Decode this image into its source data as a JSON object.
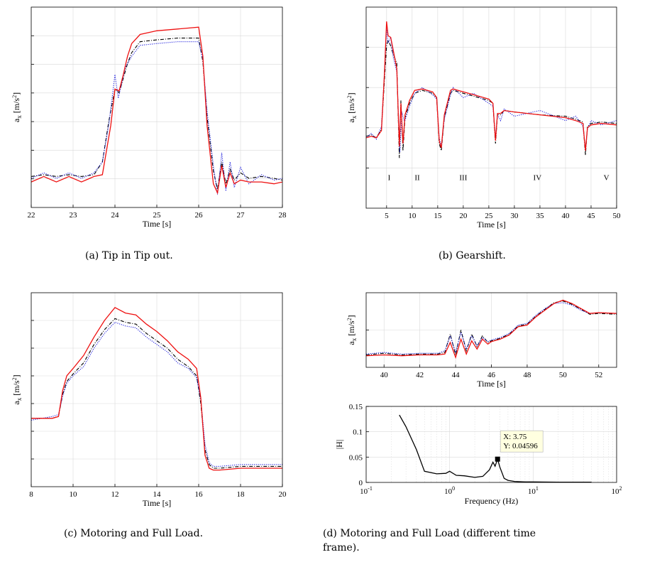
{
  "captions": {
    "a": "(a)  Tip in Tip out.",
    "b": "(b)  Gearshift.",
    "c": "(c)  Motoring and Full Load.",
    "d1": "(d)  Motoring  and  Full  Load  (different  time",
    "d2": "frame)."
  },
  "colors": {
    "series1": "#000000",
    "series2": "#2020dd",
    "series3": "#ee1111",
    "datatip_bg": "#ffffe0"
  },
  "chart_data": [
    {
      "id": "a",
      "type": "line",
      "xlabel": "Time [s]",
      "ylabel": "a_x [m/s^2]",
      "xlim": [
        22,
        28
      ],
      "xticks": [
        22,
        23,
        24,
        25,
        26,
        27,
        28
      ],
      "grid": true,
      "ytick_labels_visible": false,
      "series": [
        {
          "style": "dashdot",
          "color": "black",
          "x": [
            22,
            22.3,
            22.6,
            22.9,
            23.2,
            23.5,
            23.7,
            23.85,
            24.0,
            24.1,
            24.2,
            24.3,
            24.4,
            24.6,
            25.0,
            25.5,
            26.0,
            26.1,
            26.2,
            26.35,
            26.45,
            26.55,
            26.65,
            26.75,
            26.85,
            27.0,
            27.2,
            27.5,
            27.8,
            28
          ],
          "y": [
            0.12,
            0.13,
            0.12,
            0.13,
            0.12,
            0.13,
            0.2,
            0.42,
            0.6,
            0.58,
            0.66,
            0.74,
            0.8,
            0.86,
            0.87,
            0.88,
            0.88,
            0.75,
            0.45,
            0.15,
            0.05,
            0.2,
            0.08,
            0.16,
            0.1,
            0.14,
            0.11,
            0.12,
            0.11,
            0.1
          ]
        },
        {
          "style": "dotted",
          "color": "blue",
          "x": [
            22,
            22.3,
            22.6,
            22.9,
            23.2,
            23.5,
            23.7,
            23.85,
            24.0,
            24.08,
            24.15,
            24.25,
            24.4,
            24.6,
            25.0,
            25.5,
            26.0,
            26.1,
            26.2,
            26.35,
            26.45,
            26.55,
            26.65,
            26.75,
            26.85,
            27.0,
            27.2,
            27.5,
            27.8,
            28
          ],
          "y": [
            0.11,
            0.14,
            0.11,
            0.14,
            0.11,
            0.14,
            0.2,
            0.4,
            0.68,
            0.55,
            0.62,
            0.72,
            0.78,
            0.84,
            0.85,
            0.86,
            0.86,
            0.76,
            0.48,
            0.18,
            0.02,
            0.25,
            0.04,
            0.2,
            0.06,
            0.17,
            0.08,
            0.13,
            0.1,
            0.11
          ]
        },
        {
          "style": "solid",
          "color": "red",
          "x": [
            22,
            22.3,
            22.6,
            22.9,
            23.2,
            23.5,
            23.7,
            23.9,
            24.0,
            24.1,
            24.2,
            24.3,
            24.4,
            24.6,
            25.0,
            25.5,
            26.0,
            26.1,
            26.2,
            26.35,
            26.45,
            26.55,
            26.65,
            26.75,
            26.85,
            27.0,
            27.2,
            27.5,
            27.8,
            28
          ],
          "y": [
            0.09,
            0.12,
            0.09,
            0.12,
            0.09,
            0.12,
            0.13,
            0.4,
            0.6,
            0.59,
            0.68,
            0.78,
            0.85,
            0.9,
            0.92,
            0.93,
            0.94,
            0.78,
            0.4,
            0.08,
            0.03,
            0.18,
            0.06,
            0.14,
            0.08,
            0.1,
            0.09,
            0.09,
            0.08,
            0.09
          ]
        }
      ]
    },
    {
      "id": "b",
      "type": "line",
      "xlabel": "Time [s]",
      "ylabel": "a_x [m/s^2]",
      "xlim": [
        1,
        50
      ],
      "xticks": [
        5,
        10,
        15,
        20,
        25,
        30,
        35,
        40,
        45,
        50
      ],
      "grid": true,
      "ytick_labels_visible": false,
      "annotations": [
        {
          "text": "I",
          "x": 5.5
        },
        {
          "text": "II",
          "x": 11
        },
        {
          "text": "III",
          "x": 20
        },
        {
          "text": "IV",
          "x": 34.5
        },
        {
          "text": "V",
          "x": 48
        }
      ],
      "series": [
        {
          "style": "dashdot",
          "color": "black",
          "x": [
            1,
            2,
            3,
            4,
            4.6,
            5.0,
            5.3,
            5.8,
            6.3,
            7.0,
            7.5,
            7.8,
            8.2,
            8.6,
            9.5,
            10.5,
            12,
            14,
            14.8,
            15.3,
            15.7,
            16.3,
            17.5,
            18,
            20,
            22,
            25,
            25.8,
            26.3,
            26.7,
            27.3,
            28,
            30,
            35,
            40,
            42,
            43.4,
            43.9,
            44.3,
            45,
            47,
            50
          ],
          "y": [
            0.15,
            0.16,
            0.14,
            0.2,
            0.55,
            0.78,
            0.82,
            0.78,
            0.72,
            0.66,
            0.0,
            0.4,
            0.05,
            0.28,
            0.38,
            0.45,
            0.47,
            0.45,
            0.42,
            0.1,
            0.05,
            0.28,
            0.45,
            0.47,
            0.45,
            0.43,
            0.4,
            0.38,
            0.1,
            0.3,
            0.3,
            0.33,
            0.32,
            0.3,
            0.29,
            0.27,
            0.25,
            0.02,
            0.22,
            0.24,
            0.25,
            0.24
          ]
        },
        {
          "style": "dotted",
          "color": "blue",
          "x": [
            1,
            2,
            3,
            4,
            4.6,
            5.0,
            5.3,
            5.8,
            6.3,
            7.0,
            7.6,
            8.0,
            8.5,
            9.5,
            10.5,
            12,
            14,
            14.8,
            15.3,
            15.7,
            16.3,
            17.5,
            18,
            20,
            22,
            25,
            25.8,
            26.3,
            26.7,
            27.3,
            28,
            30,
            35,
            40,
            42,
            43.4,
            43.9,
            44.3,
            45,
            47,
            50
          ],
          "y": [
            0.14,
            0.17,
            0.13,
            0.22,
            0.6,
            0.9,
            0.8,
            0.84,
            0.7,
            0.6,
            0.04,
            0.32,
            0.25,
            0.36,
            0.45,
            0.49,
            0.44,
            0.41,
            0.14,
            0.08,
            0.27,
            0.44,
            0.49,
            0.42,
            0.45,
            0.38,
            0.36,
            0.14,
            0.3,
            0.26,
            0.34,
            0.29,
            0.33,
            0.26,
            0.29,
            0.22,
            0.06,
            0.2,
            0.26,
            0.23,
            0.26
          ]
        },
        {
          "style": "solid",
          "color": "red",
          "x": [
            1,
            2,
            3,
            4,
            4.6,
            5.0,
            5.3,
            5.8,
            6.3,
            7.0,
            7.5,
            7.8,
            8.2,
            8.6,
            9.5,
            10.5,
            12,
            14,
            14.8,
            15.3,
            15.7,
            16.3,
            17.5,
            18,
            20,
            22,
            25,
            25.8,
            26.3,
            26.7,
            27.3,
            28,
            30,
            35,
            40,
            42,
            43.4,
            43.9,
            44.3,
            45,
            47,
            50
          ],
          "y": [
            0.14,
            0.15,
            0.14,
            0.19,
            0.6,
            0.95,
            0.85,
            0.84,
            0.75,
            0.62,
            0.08,
            0.38,
            0.1,
            0.3,
            0.4,
            0.47,
            0.48,
            0.46,
            0.42,
            0.12,
            0.07,
            0.3,
            0.47,
            0.48,
            0.46,
            0.44,
            0.41,
            0.38,
            0.12,
            0.31,
            0.31,
            0.33,
            0.32,
            0.3,
            0.28,
            0.26,
            0.24,
            0.05,
            0.21,
            0.23,
            0.24,
            0.23
          ]
        }
      ]
    },
    {
      "id": "c",
      "type": "line",
      "xlabel": "Time [s]",
      "ylabel": "a_x [m/s^2]",
      "xlim": [
        8,
        20
      ],
      "xticks": [
        8,
        10,
        12,
        14,
        16,
        18,
        20
      ],
      "grid": true,
      "ytick_labels_visible": false,
      "series": [
        {
          "style": "dashdot",
          "color": "black",
          "x": [
            8,
            9,
            9.3,
            9.5,
            9.7,
            10,
            10.5,
            11,
            11.5,
            12,
            12.5,
            13,
            13.5,
            14,
            14.5,
            15,
            15.5,
            15.9,
            16.1,
            16.3,
            16.5,
            16.7,
            17,
            18,
            19,
            20
          ],
          "y": [
            0.32,
            0.32,
            0.33,
            0.45,
            0.52,
            0.56,
            0.62,
            0.72,
            0.8,
            0.86,
            0.84,
            0.83,
            0.78,
            0.74,
            0.7,
            0.64,
            0.6,
            0.55,
            0.4,
            0.15,
            0.07,
            0.05,
            0.05,
            0.06,
            0.06,
            0.06
          ]
        },
        {
          "style": "dotted",
          "color": "blue",
          "x": [
            8,
            9,
            9.3,
            9.5,
            9.7,
            10,
            10.5,
            11,
            11.5,
            12,
            12.5,
            13,
            13.5,
            14,
            14.5,
            15,
            15.5,
            15.9,
            16.1,
            16.3,
            16.5,
            16.7,
            17,
            18,
            19,
            20
          ],
          "y": [
            0.31,
            0.33,
            0.34,
            0.44,
            0.51,
            0.55,
            0.6,
            0.7,
            0.78,
            0.84,
            0.82,
            0.81,
            0.76,
            0.72,
            0.68,
            0.62,
            0.59,
            0.54,
            0.42,
            0.18,
            0.08,
            0.06,
            0.06,
            0.07,
            0.07,
            0.07
          ]
        },
        {
          "style": "solid",
          "color": "red",
          "x": [
            8,
            9,
            9.3,
            9.5,
            9.7,
            10,
            10.5,
            11,
            11.5,
            12,
            12.5,
            13,
            13.5,
            14,
            14.5,
            15,
            15.5,
            15.9,
            16.1,
            16.3,
            16.5,
            16.7,
            17,
            18,
            19,
            20
          ],
          "y": [
            0.32,
            0.32,
            0.33,
            0.47,
            0.55,
            0.59,
            0.66,
            0.76,
            0.85,
            0.92,
            0.89,
            0.88,
            0.83,
            0.79,
            0.74,
            0.68,
            0.64,
            0.59,
            0.43,
            0.12,
            0.05,
            0.04,
            0.04,
            0.05,
            0.05,
            0.05
          ]
        }
      ]
    },
    {
      "id": "d-time",
      "type": "line",
      "xlabel": "Time [s]",
      "ylabel": "a_x [m/s^2]",
      "xlim": [
        39,
        53
      ],
      "xticks": [
        40,
        42,
        44,
        46,
        48,
        50,
        52
      ],
      "grid": true,
      "ytick_labels_visible": false,
      "series": [
        {
          "style": "dashdot",
          "color": "black",
          "x": [
            39,
            40,
            41,
            42,
            43,
            43.4,
            43.7,
            44,
            44.3,
            44.6,
            44.9,
            45.2,
            45.5,
            45.8,
            46,
            46.5,
            47,
            47.5,
            48,
            48.5,
            49,
            49.5,
            50,
            50.5,
            51,
            51.5,
            52,
            53
          ],
          "y": [
            0.25,
            0.27,
            0.25,
            0.26,
            0.26,
            0.28,
            0.5,
            0.25,
            0.55,
            0.3,
            0.5,
            0.35,
            0.48,
            0.4,
            0.42,
            0.45,
            0.5,
            0.6,
            0.62,
            0.72,
            0.8,
            0.88,
            0.9,
            0.86,
            0.8,
            0.74,
            0.75,
            0.74
          ]
        },
        {
          "style": "dotted",
          "color": "blue",
          "x": [
            39,
            40,
            41,
            42,
            43,
            43.4,
            43.7,
            44,
            44.3,
            44.6,
            44.9,
            45.2,
            45.5,
            45.8,
            46,
            46.5,
            47,
            47.5,
            48,
            48.5,
            49,
            49.5,
            50,
            50.5,
            51,
            51.5,
            52,
            53
          ],
          "y": [
            0.26,
            0.28,
            0.26,
            0.27,
            0.27,
            0.3,
            0.48,
            0.28,
            0.52,
            0.32,
            0.48,
            0.36,
            0.46,
            0.41,
            0.43,
            0.46,
            0.51,
            0.61,
            0.63,
            0.73,
            0.81,
            0.87,
            0.88,
            0.85,
            0.79,
            0.75,
            0.76,
            0.75
          ]
        },
        {
          "style": "solid",
          "color": "red",
          "x": [
            39,
            40,
            41,
            42,
            43,
            43.4,
            43.7,
            44,
            44.3,
            44.6,
            44.9,
            45.2,
            45.5,
            45.8,
            46,
            46.5,
            47,
            47.5,
            48,
            48.5,
            49,
            49.5,
            50,
            50.5,
            51,
            51.5,
            52,
            53
          ],
          "y": [
            0.24,
            0.25,
            0.24,
            0.25,
            0.25,
            0.26,
            0.4,
            0.22,
            0.44,
            0.26,
            0.42,
            0.32,
            0.44,
            0.38,
            0.41,
            0.44,
            0.49,
            0.59,
            0.61,
            0.71,
            0.79,
            0.87,
            0.91,
            0.87,
            0.81,
            0.75,
            0.76,
            0.75
          ]
        }
      ]
    },
    {
      "id": "d-freq",
      "type": "line",
      "xlabel": "Frequency (Hz)",
      "ylabel": "|H|",
      "xscale": "log",
      "xlim": [
        0.1,
        100
      ],
      "ylim": [
        0,
        0.15
      ],
      "yticks": [
        0,
        0.05,
        0.1,
        0.15
      ],
      "ytick_labels": [
        "0",
        "0.05",
        "0.1",
        "0.15"
      ],
      "xtick_labels": [
        {
          "base": "10",
          "exp": "-1"
        },
        {
          "base": "10",
          "exp": "0"
        },
        {
          "base": "10",
          "exp": "1"
        },
        {
          "base": "10",
          "exp": "2"
        }
      ],
      "grid": true,
      "series": [
        {
          "style": "solid",
          "color": "black",
          "x": [
            0.25,
            0.3,
            0.4,
            0.5,
            0.7,
            0.9,
            1.0,
            1.2,
            1.5,
            2.0,
            2.5,
            3.0,
            3.3,
            3.5,
            3.75,
            4.0,
            4.5,
            5.0,
            6.0,
            8.0,
            10,
            20,
            50
          ],
          "y": [
            0.133,
            0.11,
            0.065,
            0.022,
            0.017,
            0.018,
            0.022,
            0.014,
            0.013,
            0.01,
            0.012,
            0.025,
            0.04,
            0.032,
            0.046,
            0.03,
            0.008,
            0.004,
            0.002,
            0.001,
            0.001,
            0.0005,
            0.0005
          ]
        }
      ],
      "datatip": {
        "x": 3.75,
        "y": 0.04596,
        "label_x": "X: 3.75",
        "label_y": "Y: 0.04596"
      }
    }
  ]
}
